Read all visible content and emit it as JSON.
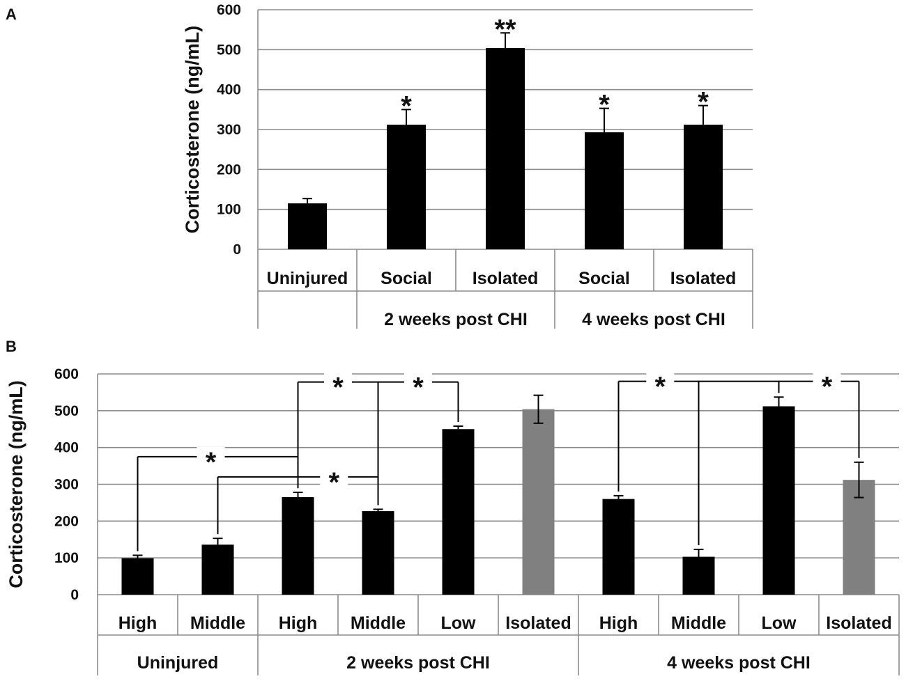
{
  "chart_data": [
    {
      "panel": "A",
      "type": "bar",
      "ylabel": "Corticosterone (ng/mL)",
      "ylim": [
        0,
        600
      ],
      "yticks": [
        0,
        100,
        200,
        300,
        400,
        500,
        600
      ],
      "grid": true,
      "categories": [
        "Uninjured",
        "Social",
        "Isolated",
        "Social",
        "Isolated"
      ],
      "groups": [
        {
          "label": "",
          "start": 0,
          "end": 0
        },
        {
          "label": "2 weeks post CHI",
          "start": 1,
          "end": 2
        },
        {
          "label": "4 weeks post CHI",
          "start": 3,
          "end": 4
        }
      ],
      "values": [
        115,
        312,
        504,
        293,
        312
      ],
      "errors": [
        12,
        38,
        38,
        60,
        48
      ],
      "colors": [
        "#000000",
        "#000000",
        "#000000",
        "#000000",
        "#000000"
      ],
      "significance": [
        "",
        "*",
        "**",
        "*",
        "*"
      ]
    },
    {
      "panel": "B",
      "type": "bar",
      "ylabel": "Corticosterone (ng/mL)",
      "ylim": [
        0,
        600
      ],
      "yticks": [
        0,
        100,
        200,
        300,
        400,
        500,
        600
      ],
      "grid": true,
      "categories": [
        "High",
        "Middle",
        "High",
        "Middle",
        "Low",
        "Isolated",
        "High",
        "Middle",
        "Low",
        "Isolated"
      ],
      "groups": [
        {
          "label": "Uninjured",
          "start": 0,
          "end": 1
        },
        {
          "label": "2 weeks post CHI",
          "start": 2,
          "end": 5
        },
        {
          "label": "4 weeks post CHI",
          "start": 6,
          "end": 9
        }
      ],
      "values": [
        99,
        136,
        265,
        227,
        450,
        504,
        260,
        103,
        512,
        312
      ],
      "errors": [
        8,
        17,
        13,
        5,
        8,
        38,
        9,
        20,
        25,
        48
      ],
      "colors": [
        "#000000",
        "#000000",
        "#000000",
        "#000000",
        "#000000",
        "#808080",
        "#000000",
        "#000000",
        "#000000",
        "#808080"
      ],
      "comparisons": [
        {
          "from": 0,
          "to": 2,
          "level": 375,
          "label": "*"
        },
        {
          "from": 1,
          "to": 3,
          "level": 320,
          "label": "*"
        },
        {
          "from": 2,
          "to": 4,
          "level": 578,
          "label": "*"
        },
        {
          "from": 3,
          "to": 3,
          "level": 578,
          "label": ""
        },
        {
          "from": 6,
          "to": 9,
          "level": 580,
          "label": "*"
        },
        {
          "from": 7,
          "to": 7,
          "level": 580,
          "label": ""
        },
        {
          "from": 8,
          "to": 8,
          "level": 580,
          "label": "*"
        }
      ]
    }
  ]
}
